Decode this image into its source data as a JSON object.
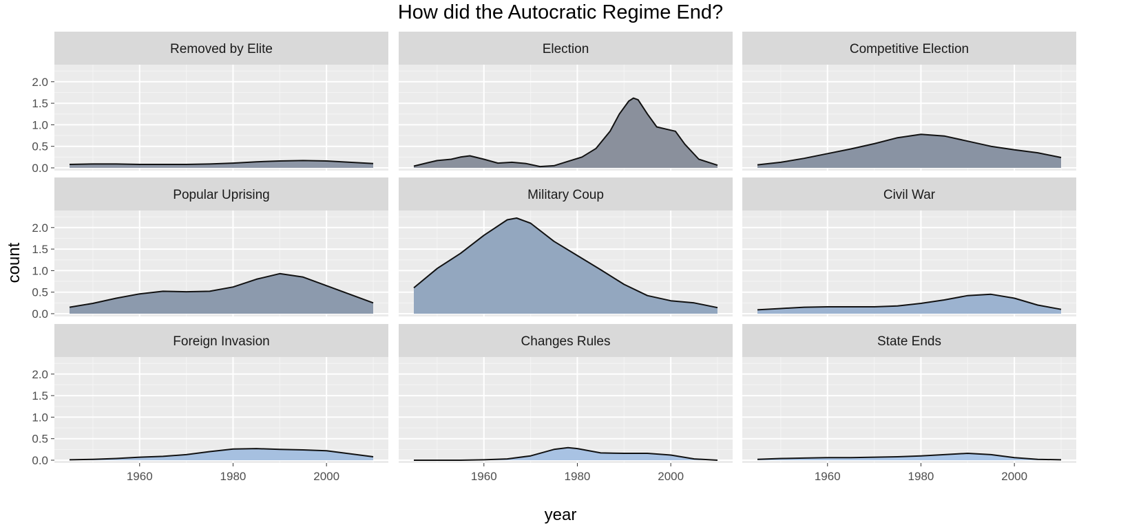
{
  "chart_data": {
    "type": "area",
    "title": "How did the Autocratic Regime End?",
    "xlabel": "year",
    "ylabel": "count",
    "xlim": [
      1945,
      2010
    ],
    "ylim": [
      0,
      2.3
    ],
    "x_ticks": [
      1960,
      1980,
      2000
    ],
    "y_ticks": [
      0.0,
      0.5,
      1.0,
      1.5,
      2.0
    ],
    "y_tick_labels": [
      "0.0",
      "0.5",
      "1.0",
      "1.5",
      "2.0"
    ],
    "grid": true,
    "layout": "facet 3x3",
    "panels": [
      {
        "name": "Removed by Elite",
        "fill": "#8d96a6",
        "x": [
          1945,
          1950,
          1955,
          1960,
          1965,
          1970,
          1975,
          1980,
          1985,
          1990,
          1995,
          2000,
          2005,
          2010
        ],
        "y": [
          0.08,
          0.09,
          0.09,
          0.08,
          0.08,
          0.08,
          0.09,
          0.11,
          0.14,
          0.16,
          0.17,
          0.16,
          0.13,
          0.1
        ]
      },
      {
        "name": "Election",
        "fill": "#8a909c",
        "x": [
          1945,
          1948,
          1950,
          1953,
          1955,
          1957,
          1960,
          1963,
          1966,
          1969,
          1972,
          1975,
          1978,
          1981,
          1984,
          1987,
          1989,
          1991,
          1992,
          1993,
          1995,
          1997,
          1999,
          2001,
          2003,
          2006,
          2010
        ],
        "y": [
          0.04,
          0.12,
          0.17,
          0.2,
          0.25,
          0.28,
          0.2,
          0.11,
          0.13,
          0.1,
          0.03,
          0.05,
          0.15,
          0.25,
          0.45,
          0.85,
          1.25,
          1.55,
          1.62,
          1.58,
          1.25,
          0.95,
          0.9,
          0.85,
          0.55,
          0.2,
          0.06
        ]
      },
      {
        "name": "Competitive Election",
        "fill": "#8993a3",
        "x": [
          1945,
          1950,
          1955,
          1960,
          1965,
          1970,
          1975,
          1980,
          1985,
          1990,
          1995,
          2000,
          2005,
          2010
        ],
        "y": [
          0.07,
          0.13,
          0.22,
          0.33,
          0.44,
          0.56,
          0.7,
          0.78,
          0.74,
          0.62,
          0.5,
          0.42,
          0.35,
          0.24
        ]
      },
      {
        "name": "Popular Uprising",
        "fill": "#8c9aad",
        "x": [
          1945,
          1950,
          1955,
          1960,
          1965,
          1970,
          1975,
          1980,
          1985,
          1990,
          1995,
          2000,
          2005,
          2010
        ],
        "y": [
          0.15,
          0.24,
          0.36,
          0.46,
          0.52,
          0.51,
          0.52,
          0.62,
          0.8,
          0.93,
          0.85,
          0.65,
          0.45,
          0.25
        ]
      },
      {
        "name": "Military Coup",
        "fill": "#93a7bf",
        "x": [
          1945,
          1950,
          1955,
          1960,
          1965,
          1967,
          1970,
          1975,
          1980,
          1985,
          1990,
          1995,
          2000,
          2005,
          2010
        ],
        "y": [
          0.6,
          1.05,
          1.4,
          1.82,
          2.18,
          2.22,
          2.1,
          1.68,
          1.35,
          1.02,
          0.68,
          0.42,
          0.3,
          0.25,
          0.14
        ]
      },
      {
        "name": "Civil War",
        "fill": "#9cb3d0",
        "x": [
          1945,
          1950,
          1955,
          1960,
          1965,
          1970,
          1975,
          1980,
          1985,
          1990,
          1995,
          2000,
          2005,
          2010
        ],
        "y": [
          0.09,
          0.12,
          0.15,
          0.16,
          0.16,
          0.16,
          0.18,
          0.24,
          0.32,
          0.42,
          0.45,
          0.36,
          0.2,
          0.1
        ]
      },
      {
        "name": "Foreign Invasion",
        "fill": "#a6c0e0",
        "x": [
          1945,
          1950,
          1955,
          1960,
          1965,
          1970,
          1975,
          1980,
          1985,
          1990,
          1995,
          2000,
          2005,
          2010
        ],
        "y": [
          0.01,
          0.02,
          0.04,
          0.07,
          0.09,
          0.13,
          0.2,
          0.26,
          0.27,
          0.25,
          0.24,
          0.22,
          0.15,
          0.08
        ]
      },
      {
        "name": "Changes Rules",
        "fill": "#a8c2e3",
        "x": [
          1945,
          1950,
          1955,
          1960,
          1965,
          1970,
          1975,
          1978,
          1980,
          1985,
          1990,
          1995,
          2000,
          2005,
          2010
        ],
        "y": [
          0.0,
          0.0,
          0.0,
          0.01,
          0.03,
          0.1,
          0.25,
          0.29,
          0.27,
          0.17,
          0.16,
          0.16,
          0.12,
          0.03,
          0.0
        ]
      },
      {
        "name": "State Ends",
        "fill": "#aac6e8",
        "x": [
          1945,
          1950,
          1955,
          1960,
          1965,
          1970,
          1975,
          1980,
          1985,
          1990,
          1995,
          2000,
          2005,
          2010
        ],
        "y": [
          0.02,
          0.04,
          0.05,
          0.06,
          0.06,
          0.07,
          0.08,
          0.1,
          0.13,
          0.16,
          0.13,
          0.06,
          0.02,
          0.01
        ]
      }
    ]
  }
}
